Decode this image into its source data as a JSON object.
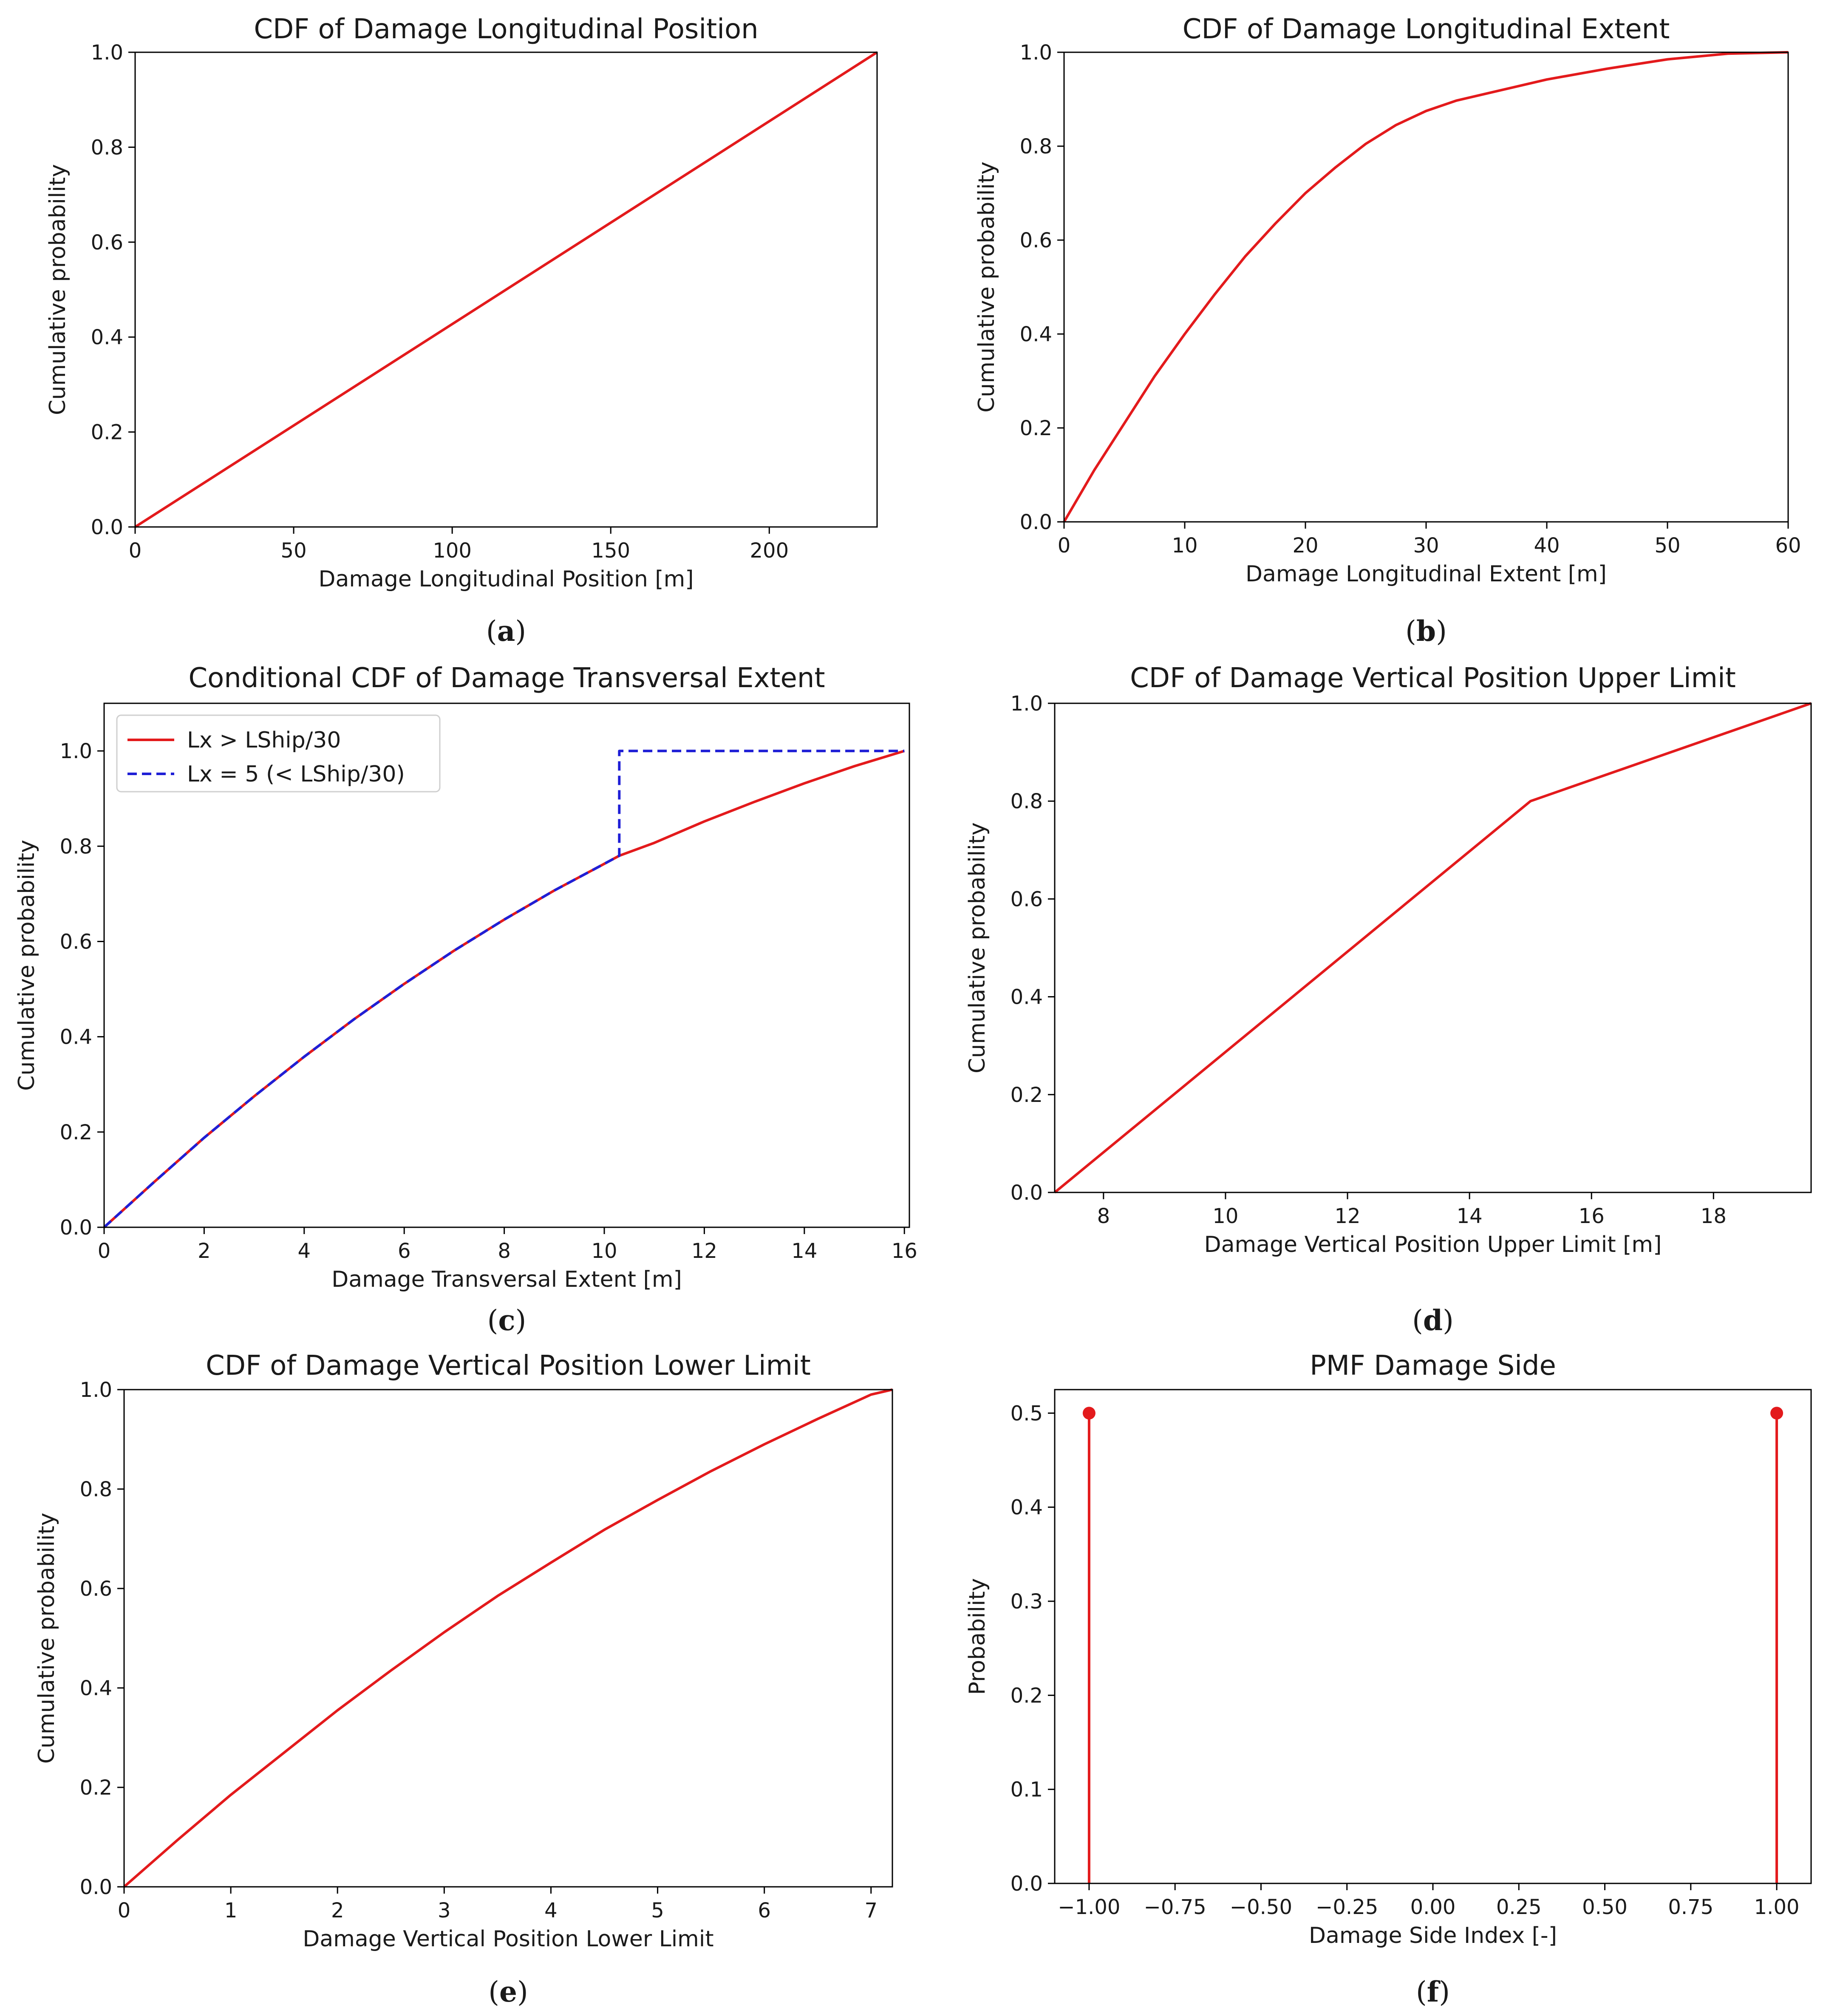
{
  "chart_data": [
    {
      "id": "a",
      "panel_label": "a",
      "type": "line",
      "title": "CDF of Damage Longitudinal Position",
      "xlabel": "Damage Longitudinal Position [m]",
      "ylabel": "Cumulative probability",
      "xlim": [
        0,
        234
      ],
      "ylim": [
        0,
        1
      ],
      "xticks": [
        0,
        50,
        100,
        150,
        200
      ],
      "xtick_labels": [
        "0",
        "50",
        "100",
        "150",
        "200"
      ],
      "yticks": [
        0,
        0.2,
        0.4,
        0.6,
        0.8,
        1.0
      ],
      "ytick_labels": [
        "0.0",
        "0.2",
        "0.4",
        "0.6",
        "0.8",
        "1.0"
      ],
      "series": [
        {
          "name": "CDF",
          "color": "#e31a1c",
          "style": "solid",
          "x": [
            0,
            234
          ],
          "y": [
            0,
            1
          ]
        }
      ]
    },
    {
      "id": "b",
      "panel_label": "b",
      "type": "line",
      "title": "CDF of Damage Longitudinal Extent",
      "xlabel": "Damage Longitudinal Extent [m]",
      "ylabel": "Cumulative probability",
      "xlim": [
        0,
        60
      ],
      "ylim": [
        0,
        1
      ],
      "xticks": [
        0,
        10,
        20,
        30,
        40,
        50,
        60
      ],
      "xtick_labels": [
        "0",
        "10",
        "20",
        "30",
        "40",
        "50",
        "60"
      ],
      "yticks": [
        0,
        0.2,
        0.4,
        0.6,
        0.8,
        1.0
      ],
      "ytick_labels": [
        "0.0",
        "0.2",
        "0.4",
        "0.6",
        "0.8",
        "1.0"
      ],
      "series": [
        {
          "name": "CDF",
          "color": "#e31a1c",
          "style": "solid",
          "x": [
            0,
            2.5,
            5,
            7.5,
            10,
            12.5,
            15,
            17.5,
            20,
            22.5,
            25,
            27.5,
            30,
            32.5,
            35,
            40,
            45,
            50,
            55,
            60
          ],
          "y": [
            0,
            0.11,
            0.21,
            0.31,
            0.4,
            0.485,
            0.565,
            0.635,
            0.7,
            0.755,
            0.805,
            0.845,
            0.875,
            0.897,
            0.912,
            0.942,
            0.965,
            0.985,
            0.997,
            1.0
          ]
        }
      ]
    },
    {
      "id": "c",
      "panel_label": "c",
      "type": "line",
      "title": "Conditional CDF of Damage Transversal Extent",
      "xlabel": "Damage Transversal Extent [m]",
      "ylabel": "Cumulative probability",
      "xlim": [
        0,
        16.1
      ],
      "ylim": [
        0,
        1.1
      ],
      "xticks": [
        0,
        2,
        4,
        6,
        8,
        10,
        12,
        14,
        16
      ],
      "xtick_labels": [
        "0",
        "2",
        "4",
        "6",
        "8",
        "10",
        "12",
        "14",
        "16"
      ],
      "yticks": [
        0,
        0.2,
        0.4,
        0.6,
        0.8,
        1.0
      ],
      "ytick_labels": [
        "0.0",
        "0.2",
        "0.4",
        "0.6",
        "0.8",
        "1.0"
      ],
      "legend": "top-left",
      "series": [
        {
          "name": "Lx > LShip/30",
          "color": "#e31a1c",
          "style": "solid",
          "x": [
            0,
            1,
            2,
            3,
            4,
            5,
            6,
            7,
            8,
            9,
            10,
            10.3,
            11,
            12,
            13,
            14,
            15,
            16
          ],
          "y": [
            0,
            0.095,
            0.188,
            0.275,
            0.358,
            0.437,
            0.511,
            0.581,
            0.646,
            0.707,
            0.763,
            0.78,
            0.807,
            0.852,
            0.893,
            0.932,
            0.968,
            1.0
          ]
        },
        {
          "name": "Lx = 5 (< LShip/30)",
          "color": "#1f1fd6",
          "style": "dashed",
          "x": [
            0,
            1,
            2,
            3,
            4,
            5,
            6,
            7,
            8,
            9,
            10,
            10.3,
            10.3,
            16
          ],
          "y": [
            0,
            0.095,
            0.188,
            0.275,
            0.358,
            0.437,
            0.511,
            0.581,
            0.646,
            0.707,
            0.763,
            0.78,
            1.0,
            1.0
          ]
        }
      ]
    },
    {
      "id": "d",
      "panel_label": "d",
      "type": "line",
      "title": "CDF of Damage Vertical Position Upper Limit",
      "xlabel": "Damage Vertical Position Upper Limit [m]",
      "ylabel": "Cumulative probability",
      "xlim": [
        7.2,
        19.6
      ],
      "ylim": [
        0,
        1
      ],
      "xticks": [
        8,
        10,
        12,
        14,
        16,
        18
      ],
      "xtick_labels": [
        "8",
        "10",
        "12",
        "14",
        "16",
        "18"
      ],
      "yticks": [
        0,
        0.2,
        0.4,
        0.6,
        0.8,
        1.0
      ],
      "ytick_labels": [
        "0.0",
        "0.2",
        "0.4",
        "0.6",
        "0.8",
        "1.0"
      ],
      "series": [
        {
          "name": "CDF",
          "color": "#e31a1c",
          "style": "solid",
          "x": [
            7.2,
            15,
            19.6
          ],
          "y": [
            0,
            0.8,
            1.0
          ]
        }
      ]
    },
    {
      "id": "e",
      "panel_label": "e",
      "type": "line",
      "title": "CDF of Damage Vertical Position Lower Limit",
      "xlabel": "Damage Vertical Position Lower Limit",
      "ylabel": "Cumulative probability",
      "xlim": [
        0,
        7.2
      ],
      "ylim": [
        0,
        1
      ],
      "xticks": [
        0,
        1,
        2,
        3,
        4,
        5,
        6,
        7
      ],
      "xtick_labels": [
        "0",
        "1",
        "2",
        "3",
        "4",
        "5",
        "6",
        "7"
      ],
      "yticks": [
        0,
        0.2,
        0.4,
        0.6,
        0.8,
        1.0
      ],
      "ytick_labels": [
        "0.0",
        "0.2",
        "0.4",
        "0.6",
        "0.8",
        "1.0"
      ],
      "series": [
        {
          "name": "CDF",
          "color": "#e31a1c",
          "style": "solid",
          "x": [
            0,
            0.5,
            1,
            1.5,
            2,
            2.5,
            3,
            3.5,
            4,
            4.5,
            5,
            5.5,
            6,
            6.5,
            7,
            7.2
          ],
          "y": [
            0,
            0.094,
            0.185,
            0.27,
            0.355,
            0.435,
            0.512,
            0.585,
            0.652,
            0.718,
            0.778,
            0.836,
            0.89,
            0.941,
            0.99,
            1.0
          ]
        }
      ]
    },
    {
      "id": "f",
      "panel_label": "f",
      "type": "stem",
      "title": "PMF Damage Side",
      "xlabel": "Damage Side Index [-]",
      "ylabel": "Probability",
      "xlim": [
        -1.1,
        1.1
      ],
      "ylim": [
        0,
        0.525
      ],
      "xticks": [
        -1,
        -0.75,
        -0.5,
        -0.25,
        0,
        0.25,
        0.5,
        0.75,
        1
      ],
      "xtick_labels": [
        "−1.00",
        "−0.75",
        "−0.50",
        "−0.25",
        "0.00",
        "0.25",
        "0.50",
        "0.75",
        "1.00"
      ],
      "yticks": [
        0,
        0.1,
        0.2,
        0.3,
        0.4,
        0.5
      ],
      "ytick_labels": [
        "0.0",
        "0.1",
        "0.2",
        "0.3",
        "0.4",
        "0.5"
      ],
      "series": [
        {
          "name": "PMF",
          "color": "#e31a1c",
          "style": "solid",
          "x": [
            -1,
            1
          ],
          "y": [
            0.5,
            0.5
          ]
        }
      ]
    }
  ]
}
